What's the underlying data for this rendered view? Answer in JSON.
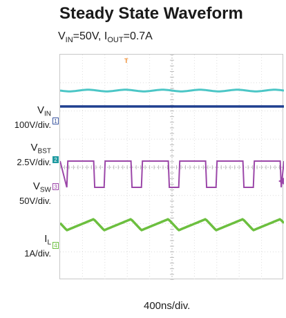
{
  "title": "Steady State Waveform",
  "subtitle": {
    "vin_sym": "V",
    "vin_sub": "IN",
    "vin_val": "=50V, ",
    "iout_sym": "I",
    "iout_sub": "OUT",
    "iout_val": "=0.7A"
  },
  "x_scale": "400ns/div.",
  "trigger_marker": "T",
  "channels": [
    {
      "sym": "V",
      "sub": "IN",
      "scale": "100V/div.",
      "marker": "1",
      "color": "#3b56a0"
    },
    {
      "sym": "V",
      "sub": "BST",
      "scale": "2.5V/div.",
      "marker": "2",
      "color": "#1f9aa0"
    },
    {
      "sym": "V",
      "sub": "SW",
      "scale": "50V/div.",
      "marker": "3",
      "color": "#9b46a8"
    },
    {
      "sym": "I",
      "sub": "L",
      "scale": "1A/div.",
      "marker": "4",
      "color": "#6cbf3f"
    }
  ],
  "chart_data": {
    "type": "line",
    "grid": true,
    "x_divisions": 10,
    "y_divisions": 8,
    "switching_periods_shown": 6,
    "switch_duty_high_fraction": 0.72,
    "trace_colors": {
      "vbst": "#4bc6c6",
      "vin": "#1f3f8f",
      "vsw": "#9b46a8",
      "il": "#6cbf3f",
      "trigger": "#f08a2b"
    }
  }
}
